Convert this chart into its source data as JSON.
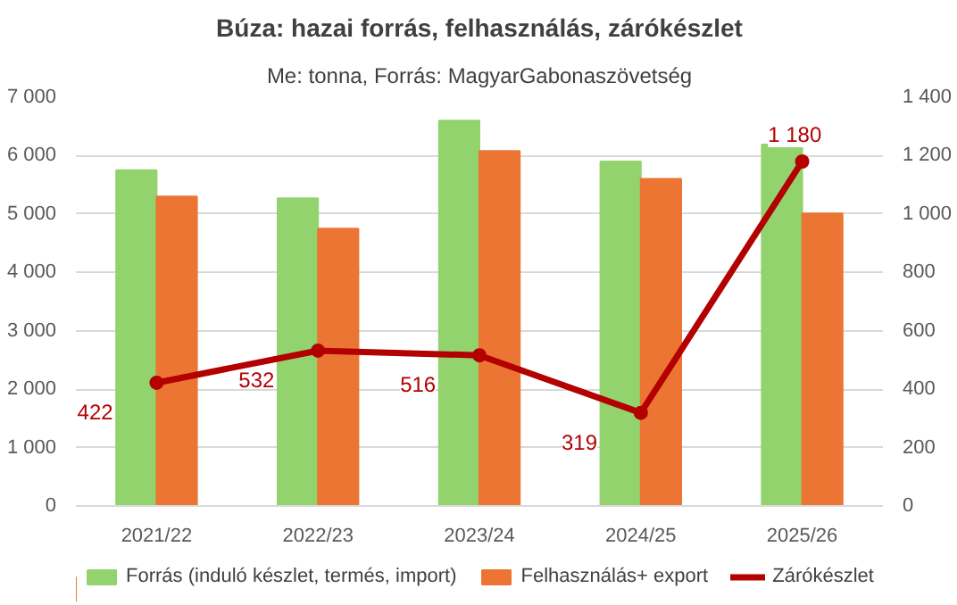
{
  "chart_data": {
    "type": "bar",
    "title": "Búza: hazai forrás, felhasználás, zárókészlet",
    "subtitle": "Me: tonna, Forrás: MagyarGabonaszövetség",
    "categories": [
      "2021/22",
      "2022/23",
      "2023/24",
      "2024/25",
      "2025/26"
    ],
    "series": [
      {
        "name": "Forrás (induló készlet, termés, import)",
        "color": "#92d36e",
        "values": [
          5750,
          5270,
          6600,
          5900,
          6190
        ]
      },
      {
        "name": "Felhasználás+ export",
        "color": "#ec7533",
        "values": [
          5300,
          4750,
          6080,
          5600,
          5010
        ]
      },
      {
        "name": "Zárókészlet",
        "type": "line",
        "axis": "y2",
        "color": "#b30000",
        "marker": "circle",
        "values": [
          422,
          532,
          516,
          319,
          1180
        ],
        "value_labels": [
          "422",
          "532",
          "516",
          "319",
          "1 180"
        ]
      }
    ],
    "ylim": [
      0,
      7000
    ],
    "yticks": [
      0,
      {
        "value": 1000,
        "label": "1 000"
      },
      {
        "value": 2000,
        "label": "2 000"
      },
      {
        "value": 3000,
        "label": "3 000"
      },
      {
        "value": 4000,
        "label": "4 000"
      },
      {
        "value": 5000,
        "label": "5 000"
      },
      {
        "value": 6000,
        "label": "6 000"
      },
      {
        "value": 7000,
        "label": "7 000"
      }
    ],
    "y2lim": [
      0,
      1400
    ],
    "y2ticks": [
      0,
      200,
      400,
      600,
      800,
      {
        "value": 1000,
        "label": "1 000"
      },
      {
        "value": 1200,
        "label": "1 200"
      },
      {
        "value": 1400,
        "label": "1 400"
      }
    ],
    "grid": "y",
    "legend": "bottom"
  }
}
